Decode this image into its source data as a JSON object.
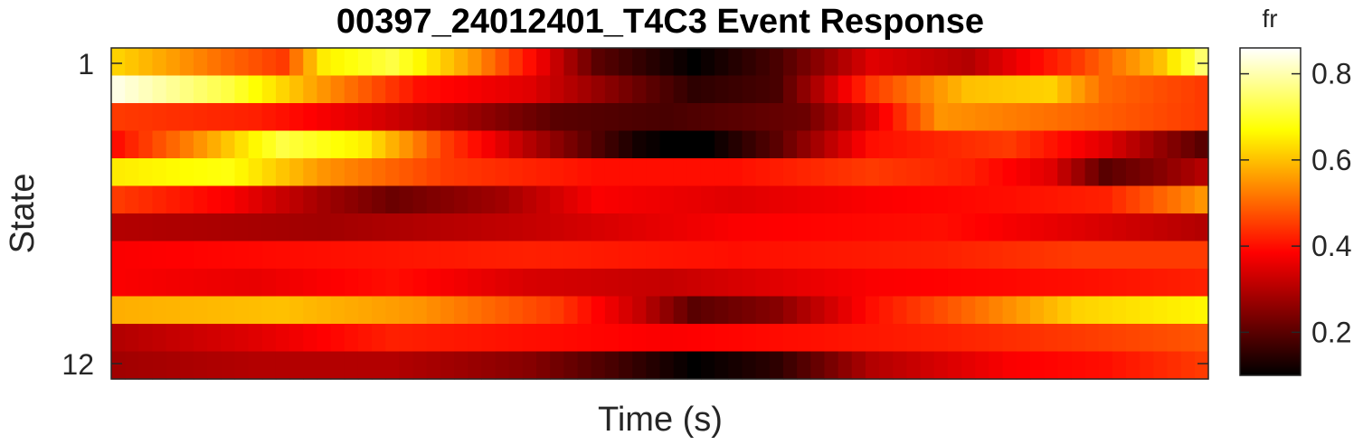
{
  "chart_data": {
    "type": "heatmap",
    "title": "00397_24012401_T4C3 Event Response",
    "xlabel": "Time (s)",
    "ylabel": "State",
    "y_tick_labels": [
      "1",
      "12"
    ],
    "y_range": [
      1,
      12
    ],
    "colorbar": {
      "label": "fr",
      "ticks": [
        "0.2",
        "0.4",
        "0.6",
        "0.8"
      ],
      "tick_values": [
        0.2,
        0.4,
        0.6,
        0.8
      ],
      "range": [
        0.1,
        0.86
      ],
      "colormap": "hot"
    },
    "columns": 80,
    "rows": [
      {
        "state": 1,
        "keypoints": [
          [
            0,
            0.62
          ],
          [
            8,
            0.5
          ],
          [
            12,
            0.45
          ],
          [
            15,
            0.65
          ],
          [
            20,
            0.72
          ],
          [
            26,
            0.55
          ],
          [
            30,
            0.4
          ],
          [
            35,
            0.2
          ],
          [
            42,
            0.1
          ],
          [
            48,
            0.18
          ],
          [
            55,
            0.35
          ],
          [
            62,
            0.3
          ],
          [
            70,
            0.45
          ],
          [
            76,
            0.6
          ],
          [
            79,
            0.75
          ]
        ]
      },
      {
        "state": 2,
        "keypoints": [
          [
            0,
            0.84
          ],
          [
            8,
            0.72
          ],
          [
            15,
            0.55
          ],
          [
            22,
            0.4
          ],
          [
            30,
            0.35
          ],
          [
            36,
            0.25
          ],
          [
            42,
            0.15
          ],
          [
            48,
            0.18
          ],
          [
            55,
            0.45
          ],
          [
            62,
            0.6
          ],
          [
            68,
            0.62
          ],
          [
            72,
            0.5
          ],
          [
            79,
            0.45
          ]
        ]
      },
      {
        "state": 3,
        "keypoints": [
          [
            0,
            0.45
          ],
          [
            10,
            0.42
          ],
          [
            18,
            0.35
          ],
          [
            25,
            0.28
          ],
          [
            32,
            0.2
          ],
          [
            40,
            0.18
          ],
          [
            50,
            0.22
          ],
          [
            55,
            0.35
          ],
          [
            60,
            0.55
          ],
          [
            70,
            0.5
          ],
          [
            79,
            0.45
          ]
        ]
      },
      {
        "state": 4,
        "keypoints": [
          [
            0,
            0.4
          ],
          [
            6,
            0.55
          ],
          [
            12,
            0.72
          ],
          [
            18,
            0.65
          ],
          [
            24,
            0.45
          ],
          [
            30,
            0.3
          ],
          [
            38,
            0.12
          ],
          [
            42,
            0.08
          ],
          [
            48,
            0.2
          ],
          [
            55,
            0.4
          ],
          [
            65,
            0.45
          ],
          [
            72,
            0.35
          ],
          [
            79,
            0.2
          ]
        ]
      },
      {
        "state": 5,
        "keypoints": [
          [
            0,
            0.65
          ],
          [
            8,
            0.68
          ],
          [
            15,
            0.55
          ],
          [
            24,
            0.45
          ],
          [
            35,
            0.4
          ],
          [
            45,
            0.4
          ],
          [
            55,
            0.45
          ],
          [
            62,
            0.42
          ],
          [
            68,
            0.35
          ],
          [
            72,
            0.2
          ],
          [
            76,
            0.25
          ],
          [
            79,
            0.3
          ]
        ]
      },
      {
        "state": 6,
        "keypoints": [
          [
            0,
            0.45
          ],
          [
            8,
            0.38
          ],
          [
            15,
            0.28
          ],
          [
            20,
            0.22
          ],
          [
            28,
            0.28
          ],
          [
            35,
            0.38
          ],
          [
            45,
            0.35
          ],
          [
            55,
            0.38
          ],
          [
            65,
            0.4
          ],
          [
            72,
            0.42
          ],
          [
            79,
            0.55
          ]
        ]
      },
      {
        "state": 7,
        "keypoints": [
          [
            0,
            0.3
          ],
          [
            15,
            0.28
          ],
          [
            30,
            0.32
          ],
          [
            45,
            0.38
          ],
          [
            60,
            0.4
          ],
          [
            70,
            0.35
          ],
          [
            79,
            0.3
          ]
        ]
      },
      {
        "state": 8,
        "keypoints": [
          [
            0,
            0.38
          ],
          [
            15,
            0.4
          ],
          [
            30,
            0.42
          ],
          [
            45,
            0.4
          ],
          [
            60,
            0.42
          ],
          [
            70,
            0.45
          ],
          [
            79,
            0.45
          ]
        ]
      },
      {
        "state": 9,
        "keypoints": [
          [
            0,
            0.38
          ],
          [
            10,
            0.36
          ],
          [
            20,
            0.4
          ],
          [
            30,
            0.34
          ],
          [
            40,
            0.32
          ],
          [
            55,
            0.38
          ],
          [
            70,
            0.4
          ],
          [
            79,
            0.42
          ]
        ]
      },
      {
        "state": 10,
        "keypoints": [
          [
            0,
            0.58
          ],
          [
            12,
            0.6
          ],
          [
            22,
            0.55
          ],
          [
            32,
            0.45
          ],
          [
            38,
            0.32
          ],
          [
            42,
            0.2
          ],
          [
            48,
            0.25
          ],
          [
            55,
            0.4
          ],
          [
            62,
            0.5
          ],
          [
            70,
            0.62
          ],
          [
            79,
            0.66
          ]
        ]
      },
      {
        "state": 11,
        "keypoints": [
          [
            0,
            0.3
          ],
          [
            10,
            0.35
          ],
          [
            20,
            0.42
          ],
          [
            30,
            0.4
          ],
          [
            40,
            0.38
          ],
          [
            50,
            0.4
          ],
          [
            60,
            0.42
          ],
          [
            70,
            0.45
          ],
          [
            79,
            0.48
          ]
        ]
      },
      {
        "state": 12,
        "keypoints": [
          [
            0,
            0.28
          ],
          [
            10,
            0.3
          ],
          [
            20,
            0.3
          ],
          [
            30,
            0.25
          ],
          [
            36,
            0.18
          ],
          [
            42,
            0.1
          ],
          [
            48,
            0.15
          ],
          [
            55,
            0.3
          ],
          [
            65,
            0.38
          ],
          [
            72,
            0.4
          ],
          [
            79,
            0.45
          ]
        ]
      }
    ]
  }
}
